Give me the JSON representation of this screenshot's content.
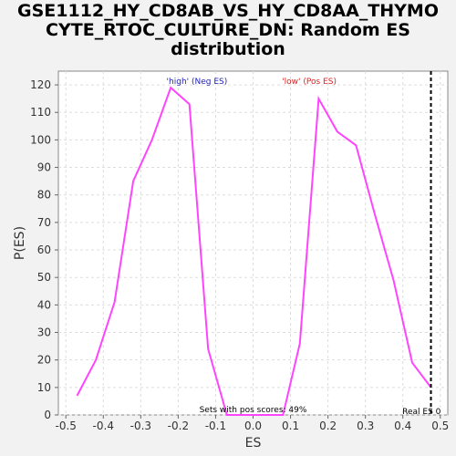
{
  "chart_data": {
    "type": "line",
    "title_lines": [
      "GSE1112_HY_CD8AB_VS_HY_CD8AA_THYMO",
      "CYTE_RTOC_CULTURE_DN: Random ES",
      "distribution"
    ],
    "xlabel": "ES",
    "ylabel": "P(ES)",
    "xlim": [
      -0.52,
      0.52
    ],
    "ylim": [
      0,
      125
    ],
    "xticks": [
      -0.5,
      -0.4,
      -0.3,
      -0.2,
      -0.1,
      0.0,
      0.1,
      0.2,
      0.3,
      0.4,
      0.5
    ],
    "xtick_labels": [
      "-0.5",
      "-0.4",
      "-0.3",
      "-0.2",
      "-0.1",
      "0.0",
      "0.1",
      "0.2",
      "0.3",
      "0.4",
      "0.5"
    ],
    "yticks": [
      0,
      10,
      20,
      30,
      40,
      50,
      60,
      70,
      80,
      90,
      100,
      110,
      120
    ],
    "grid": true,
    "line_color": "#ff44ff",
    "series": [
      {
        "x": [
          -0.47,
          -0.42,
          -0.37,
          -0.32,
          -0.27,
          -0.22,
          -0.17,
          -0.12,
          -0.07,
          -0.02,
          0.03,
          0.08,
          0.125,
          0.175,
          0.225,
          0.275,
          0.325,
          0.375,
          0.425,
          0.475
        ],
        "y": [
          7,
          20,
          41,
          85,
          100,
          119,
          113,
          24,
          0,
          0,
          0,
          0,
          26,
          115,
          103,
          98,
          73,
          49,
          19,
          10
        ]
      }
    ],
    "vline": {
      "x": 0.475,
      "label": "Real ES 0",
      "color": "#000000"
    },
    "annotations": {
      "high": "'high' (Neg ES)",
      "low": "'low' (Pos ES)",
      "pos_scores": "Sets with pos scores: 49%"
    },
    "colors": {
      "high": "#2222bb",
      "low": "#dd2222"
    }
  }
}
